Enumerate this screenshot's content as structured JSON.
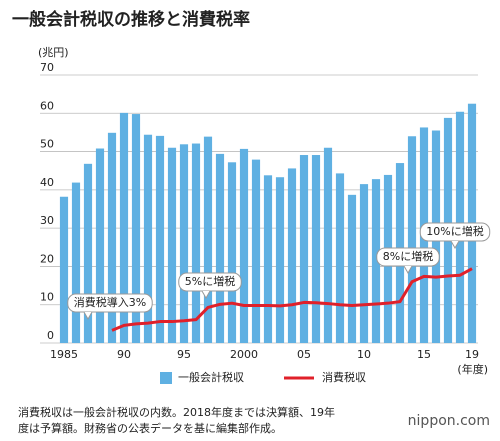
{
  "chart_data": {
    "type": "bar-line",
    "title": "一般会計税収の推移と消費税率",
    "y_label": "(兆円)",
    "x_label": "(年度)",
    "categories": [
      "1985",
      null,
      null,
      null,
      null,
      "90",
      null,
      null,
      null,
      null,
      "95",
      null,
      null,
      null,
      null,
      "2000",
      null,
      null,
      null,
      null,
      "05",
      null,
      null,
      null,
      null,
      "10",
      null,
      null,
      null,
      null,
      "15",
      null,
      null,
      null,
      "19"
    ],
    "series": [
      {
        "name": "一般会計税収",
        "type": "bar",
        "color": "#5fb0e2",
        "values": [
          38.2,
          41.9,
          46.8,
          50.8,
          54.9,
          60.1,
          59.8,
          54.4,
          54.1,
          51.0,
          51.9,
          52.1,
          53.9,
          49.4,
          47.2,
          50.7,
          47.9,
          43.8,
          43.3,
          45.6,
          49.1,
          49.1,
          51.0,
          44.3,
          38.7,
          41.5,
          42.8,
          43.9,
          47.0,
          54.0,
          56.3,
          55.5,
          58.8,
          60.4,
          62.5
        ]
      },
      {
        "name": "消費税収",
        "type": "line",
        "color": "#e0202a",
        "values": [
          null,
          null,
          null,
          null,
          3.3,
          4.6,
          5.0,
          5.2,
          5.6,
          5.6,
          5.8,
          6.1,
          9.3,
          10.1,
          10.4,
          9.8,
          9.8,
          9.8,
          9.7,
          10.0,
          10.6,
          10.5,
          10.3,
          10.0,
          9.8,
          10.0,
          10.2,
          10.4,
          10.8,
          16.0,
          17.4,
          17.2,
          17.5,
          17.7,
          19.4
        ]
      }
    ],
    "ylim": [
      0,
      70
    ],
    "yticks": [
      0,
      10,
      20,
      30,
      40,
      50,
      60,
      70
    ],
    "grid": true,
    "annotations": [
      "消費税導入3%",
      "5%に増税",
      "8%に増税",
      "10%に増税"
    ],
    "footnote": [
      "消費税収は一般会計税収の内数。2018年度までは決算額、19年",
      "度は予算額。財務省の公表データを基に編集部作成。"
    ],
    "source": "nippon.com"
  }
}
